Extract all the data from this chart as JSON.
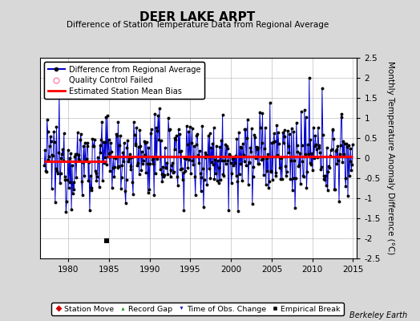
{
  "title": "DEER LAKE ARPT",
  "subtitle": "Difference of Station Temperature Data from Regional Average",
  "ylabel": "Monthly Temperature Anomaly Difference (°C)",
  "xlim": [
    1976.5,
    2015.5
  ],
  "ylim": [
    -2.5,
    2.5
  ],
  "yticks": [
    -2.5,
    -2,
    -1.5,
    -1,
    -0.5,
    0,
    0.5,
    1,
    1.5,
    2,
    2.5
  ],
  "xticks": [
    1980,
    1985,
    1990,
    1995,
    2000,
    2005,
    2010,
    2015
  ],
  "mean_bias_early": -0.08,
  "mean_bias_late": 0.05,
  "break_year": 1984.75,
  "empirical_break_x": 1984.75,
  "empirical_break_y": -2.05,
  "background_color": "#d8d8d8",
  "plot_bg_color": "#ffffff",
  "line_color": "#0000cc",
  "bias_color": "#ff0000",
  "marker_color": "#000000",
  "watermark": "Berkeley Earth",
  "seed": 12345,
  "start_year": 1977.042,
  "end_year": 2014.958
}
